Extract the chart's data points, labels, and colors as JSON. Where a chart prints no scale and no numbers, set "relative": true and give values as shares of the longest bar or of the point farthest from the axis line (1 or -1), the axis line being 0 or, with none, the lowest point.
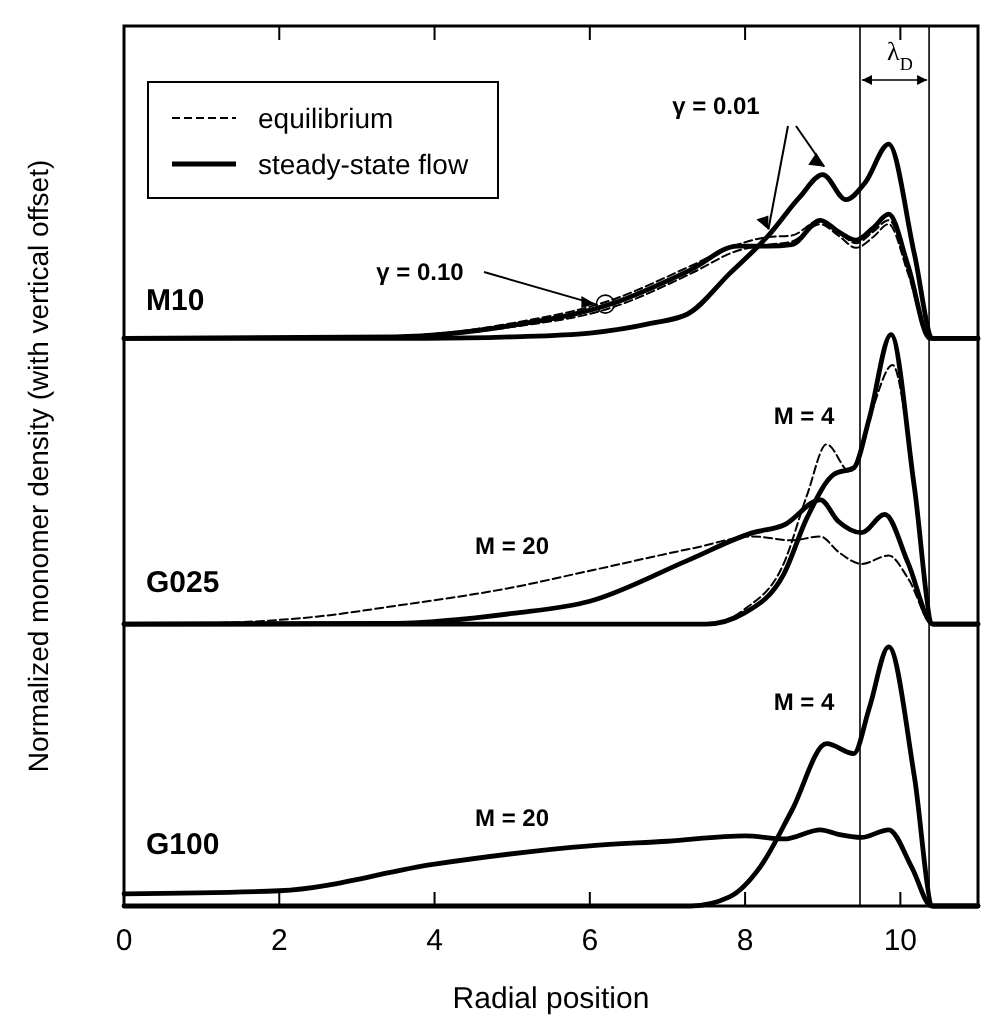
{
  "chart_data": {
    "type": "line",
    "relative": true,
    "xlabel": "Radial position",
    "ylabel": "Normalized monomer density (with vertical offset)",
    "xlim": [
      0,
      11
    ],
    "xticks": [
      0,
      2,
      4,
      6,
      8,
      10
    ],
    "legend": "top left",
    "grid": false,
    "marker": "none",
    "series": [
      {
        "name": "equilibrium",
        "color": "#000000",
        "line_style": "dashed",
        "x": [
          0,
          3.5,
          5,
          6.27,
          7.3,
          7.9,
          8.3,
          8.6,
          8.97,
          9.2,
          9.43,
          9.65,
          9.85,
          10.1,
          10.38,
          11
        ],
        "values": [
          0.745,
          0.748,
          0.765,
          0.795,
          0.84,
          0.868,
          0.878,
          0.88,
          0.9,
          0.885,
          0.87,
          0.885,
          0.9,
          0.84,
          0.745,
          0.745
        ]
      },
      {
        "color": "#000000",
        "line_style": "dashed",
        "x": [
          0,
          3.5,
          5,
          6.27,
          7.3,
          7.9,
          8.3,
          8.6,
          8.97,
          9.2,
          9.43,
          9.65,
          9.85,
          10.1,
          10.38,
          11
        ],
        "values": [
          0.745,
          0.747,
          0.76,
          0.785,
          0.83,
          0.86,
          0.868,
          0.872,
          0.895,
          0.88,
          0.864,
          0.878,
          0.895,
          0.83,
          0.745,
          0.745
        ]
      },
      {
        "name": "steady-state flow",
        "color": "#000000",
        "line_style": "solid",
        "x": [
          0,
          3.5,
          5,
          6.27,
          7.3,
          7.9,
          8.3,
          8.6,
          8.97,
          9.2,
          9.43,
          9.65,
          9.85,
          10.1,
          10.38,
          11
        ],
        "values": [
          0.745,
          0.747,
          0.762,
          0.79,
          0.835,
          0.866,
          0.866,
          0.868,
          0.9,
          0.885,
          0.874,
          0.89,
          0.908,
          0.84,
          0.745,
          0.745
        ]
      },
      {
        "color": "#000000",
        "line_style": "solid",
        "x": [
          0,
          3.9,
          5,
          6,
          6.8,
          7.26,
          7.8,
          8.3,
          8.7,
          9.0,
          9.3,
          9.55,
          9.85,
          10.18,
          10.42,
          11
        ],
        "values": [
          0.745,
          0.745,
          0.747,
          0.752,
          0.765,
          0.777,
          0.83,
          0.88,
          0.93,
          0.96,
          0.927,
          0.95,
          1.0,
          0.856,
          0.745,
          0.745
        ]
      },
      {
        "color": "#000000",
        "line_style": "dashed",
        "x": [
          0,
          1,
          2.5,
          3.5,
          5,
          6,
          7.35,
          8.1,
          8.6,
          8.97,
          9.2,
          9.5,
          9.85,
          10.1,
          10.42,
          11
        ],
        "values": [
          0.37,
          0.371,
          0.38,
          0.394,
          0.418,
          0.44,
          0.47,
          0.485,
          0.48,
          0.485,
          0.465,
          0.449,
          0.46,
          0.43,
          0.37,
          0.37
        ]
      },
      {
        "color": "#000000",
        "line_style": "solid",
        "x": [
          0,
          3.5,
          5,
          6,
          7.27,
          8.1,
          8.5,
          8.97,
          9.2,
          9.5,
          9.8,
          10.1,
          10.42,
          11
        ],
        "values": [
          0.37,
          0.371,
          0.384,
          0.4,
          0.454,
          0.49,
          0.5,
          0.533,
          0.505,
          0.49,
          0.514,
          0.45,
          0.37,
          0.37
        ]
      },
      {
        "color": "#000000",
        "line_style": "dashed",
        "x": [
          0,
          7.5,
          8.0,
          8.5,
          8.8,
          9.05,
          9.35,
          9.6,
          9.9,
          10.15,
          10.42,
          11
        ],
        "values": [
          0.37,
          0.37,
          0.39,
          0.45,
          0.54,
          0.606,
          0.57,
          0.64,
          0.71,
          0.58,
          0.37,
          0.37
        ]
      },
      {
        "color": "#000000",
        "line_style": "solid",
        "x": [
          0,
          7.5,
          8.0,
          8.5,
          8.8,
          9.15,
          9.4,
          9.6,
          9.88,
          10.18,
          10.42,
          11
        ],
        "values": [
          0.37,
          0.37,
          0.385,
          0.436,
          0.51,
          0.567,
          0.575,
          0.64,
          0.75,
          0.55,
          0.37,
          0.37
        ]
      },
      {
        "color": "#000000",
        "line_style": "solid",
        "x": [
          0,
          2,
          4,
          6,
          7,
          8,
          8.5,
          8.97,
          9.2,
          9.5,
          9.85,
          10.15,
          10.4,
          11
        ],
        "values": [
          0.016,
          0.02,
          0.055,
          0.079,
          0.085,
          0.092,
          0.088,
          0.1,
          0.094,
          0.09,
          0.1,
          0.05,
          0,
          0
        ]
      },
      {
        "color": "#000000",
        "line_style": "solid",
        "x": [
          0,
          7.3,
          7.8,
          8.2,
          8.6,
          9.05,
          9.4,
          9.6,
          9.85,
          10.18,
          10.42,
          11
        ],
        "values": [
          0,
          0,
          0.012,
          0.052,
          0.125,
          0.213,
          0.2,
          0.26,
          0.34,
          0.17,
          0,
          0
        ]
      }
    ],
    "ref_lines": [
      {
        "axis": "x",
        "value": 9.48
      },
      {
        "axis": "x",
        "value": 10.37
      }
    ],
    "annotations": [
      "γ = 0.01",
      "γ = 0.10",
      "λ$_{D}$",
      "M10",
      "G025",
      "G100",
      "M = 4",
      "M = 20",
      "M = 4",
      "M = 20"
    ]
  }
}
